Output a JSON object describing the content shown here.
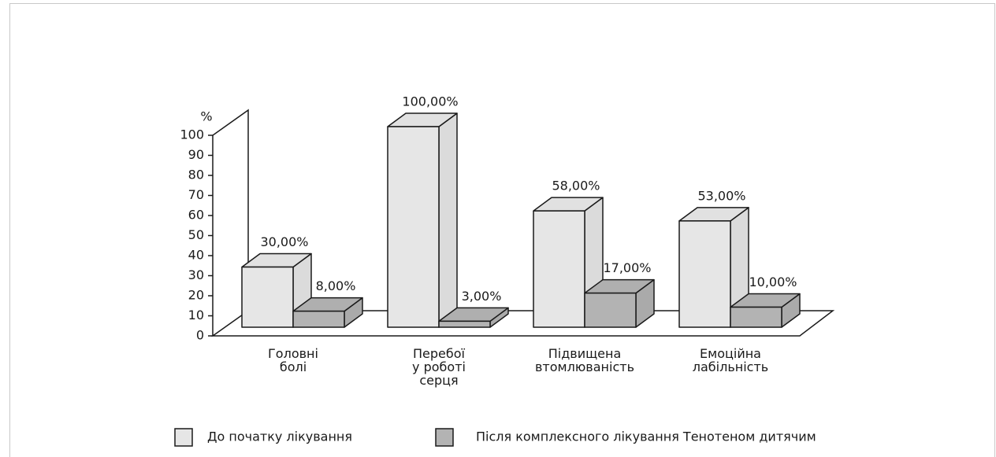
{
  "chart_data": {
    "type": "bar3d",
    "y_label": "%",
    "categories": [
      "Головні\nболі",
      "Перебої\nу роботі\nсерця",
      "Підвищена\nвтомлюваність",
      "Емоційна\nлабільність"
    ],
    "series": [
      {
        "name": "До початку лікування",
        "color": "#e6e6e6",
        "values": [
          30,
          100,
          58,
          53
        ],
        "value_labels": [
          "30,00%",
          "100,00%",
          "58,00%",
          "53,00%"
        ]
      },
      {
        "name": "Після комплексного лікування Тенотеном дитячим",
        "color": "#b3b3b3",
        "values": [
          8,
          3,
          17,
          10
        ],
        "value_labels": [
          "8,00%",
          "3,00%",
          "17,00%",
          "10,00%"
        ]
      }
    ],
    "ylim": [
      0,
      100
    ],
    "yticks": [
      0,
      10,
      20,
      30,
      40,
      50,
      60,
      70,
      80,
      90,
      100
    ]
  }
}
